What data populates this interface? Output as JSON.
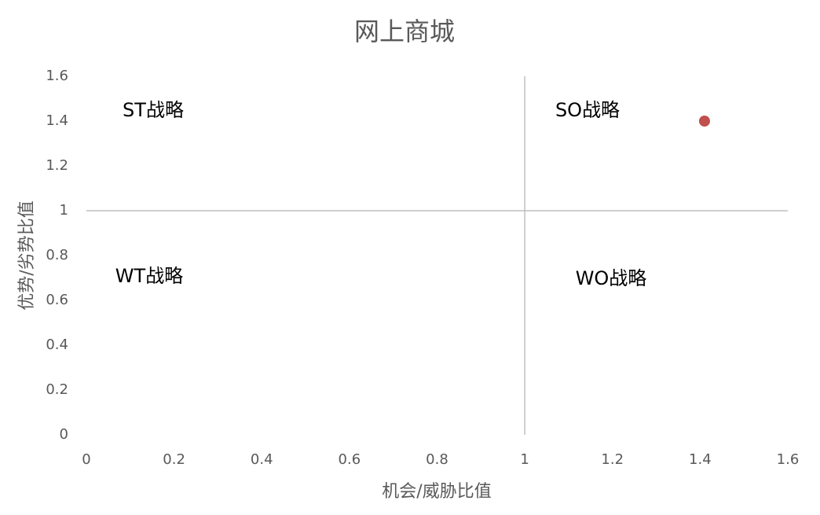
{
  "chart_data": {
    "type": "scatter",
    "title": "网上商城",
    "x_label": "机会/威胁比值",
    "y_label": "优势/劣势比值",
    "series": [
      {
        "color": "#c0504d",
        "x": [
          1.41
        ],
        "values": [
          1.4
        ]
      }
    ],
    "xlim": [
      0,
      1.6
    ],
    "xticks": [
      0,
      0.2,
      0.4,
      0.6,
      0.8,
      1,
      1.2,
      1.4,
      1.6
    ],
    "ylim": [
      0,
      1.6
    ],
    "yticks": [
      0,
      0.2,
      0.4,
      0.6,
      0.8,
      1,
      1.2,
      1.4,
      1.6
    ],
    "x_axis_at": 1,
    "y_axis_at": 1,
    "annotations": [
      "ST战略",
      "SO战略",
      "WT战略",
      "WO战略"
    ]
  }
}
